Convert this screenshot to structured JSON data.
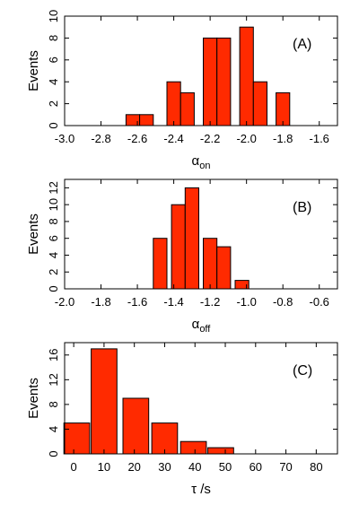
{
  "chart_data": [
    {
      "type": "bar",
      "panel_tag": "(A)",
      "xlabel": "α",
      "xlabel_sub": "on",
      "ylabel": "Events",
      "xlim": [
        -3.0,
        -1.5
      ],
      "ylim": [
        0,
        10
      ],
      "xticks": [
        -3.0,
        -2.8,
        -2.6,
        -2.4,
        -2.2,
        -2.0,
        -1.8,
        -1.6
      ],
      "xtick_labels": [
        "-3.0",
        "-2.8",
        "-2.6",
        "-2.4",
        "-2.2",
        "-2.0",
        "-1.8",
        "-1.6"
      ],
      "yticks": [
        0,
        2,
        4,
        6,
        8,
        10
      ],
      "ytick_labels": [
        "0",
        "2",
        "4",
        "6",
        "8",
        "10"
      ],
      "bin_width": 0.075,
      "x": [
        -2.625,
        -2.55,
        -2.4,
        -2.325,
        -2.2,
        -2.125,
        -2.0,
        -1.925,
        -1.8
      ],
      "values": [
        1,
        1,
        4,
        3,
        8,
        8,
        9,
        4,
        3
      ]
    },
    {
      "type": "bar",
      "panel_tag": "(B)",
      "xlabel": "α",
      "xlabel_sub": "off",
      "ylabel": "Events",
      "xlim": [
        -2.0,
        -0.5
      ],
      "ylim": [
        0,
        13
      ],
      "xticks": [
        -2.0,
        -1.8,
        -1.6,
        -1.4,
        -1.2,
        -1.0,
        -0.8,
        -0.6
      ],
      "xtick_labels": [
        "-2.0",
        "-1.8",
        "-1.6",
        "-1.4",
        "-1.2",
        "-1.0",
        "-0.8",
        "-0.6"
      ],
      "yticks": [
        0,
        2,
        4,
        6,
        8,
        10,
        12
      ],
      "ytick_labels": [
        "0",
        "2",
        "4",
        "6",
        "8",
        "10",
        "12"
      ],
      "bin_width": 0.075,
      "x": [
        -1.475,
        -1.375,
        -1.3,
        -1.2,
        -1.125,
        -1.025
      ],
      "values": [
        6,
        10,
        12,
        6,
        5,
        1
      ]
    },
    {
      "type": "bar",
      "panel_tag": "(C)",
      "xlabel": "τ /s",
      "xlabel_sub": "",
      "ylabel": "Events",
      "xlim": [
        -3,
        87
      ],
      "ylim": [
        0,
        18
      ],
      "xticks": [
        0,
        10,
        20,
        30,
        40,
        50,
        60,
        70,
        80
      ],
      "xtick_labels": [
        "0",
        "10",
        "20",
        "30",
        "40",
        "50",
        "60",
        "70",
        "80"
      ],
      "yticks": [
        0,
        4,
        8,
        12,
        16
      ],
      "ytick_labels": [
        "0",
        "4",
        "8",
        "12",
        "16"
      ],
      "bin_width": 8.5,
      "x": [
        1,
        10,
        20.5,
        30,
        39.5,
        48.5
      ],
      "values": [
        5,
        17,
        9,
        5,
        2,
        1
      ]
    }
  ]
}
